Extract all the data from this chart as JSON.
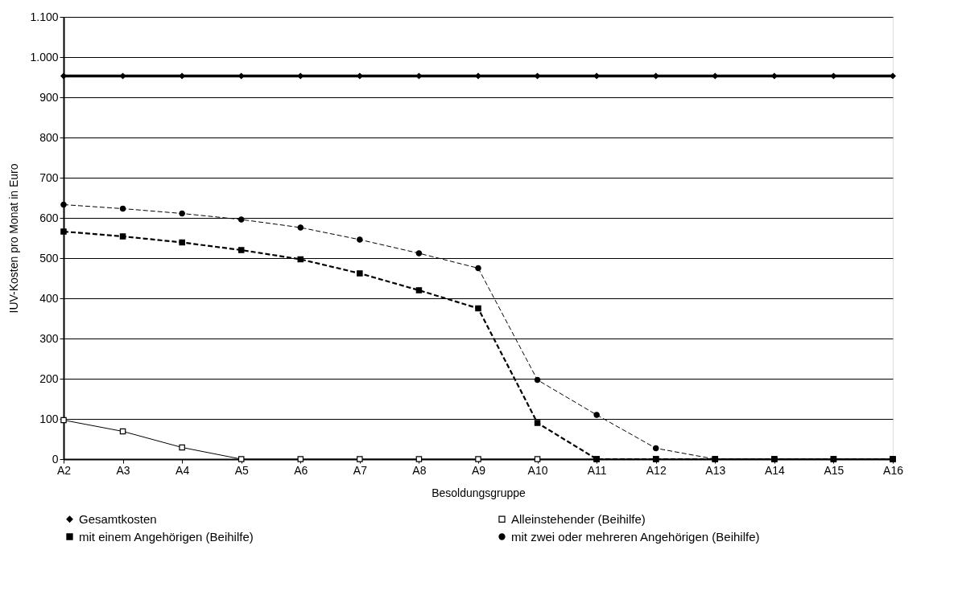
{
  "chart_data": {
    "type": "line",
    "xlabel": "Besoldungsgruppe",
    "ylabel": "IUV-Kosten pro Monat in Euro",
    "categories": [
      "A2",
      "A3",
      "A4",
      "A5",
      "A6",
      "A7",
      "A8",
      "A9",
      "A10",
      "A11",
      "A12",
      "A13",
      "A14",
      "A15",
      "A16"
    ],
    "ylim": [
      0,
      1100
    ],
    "yticks": [
      0,
      100,
      200,
      300,
      400,
      500,
      600,
      700,
      800,
      900,
      {
        "value": 1000,
        "label": "1.000"
      },
      {
        "value": 1100,
        "label": "1.100"
      }
    ],
    "grid": "y",
    "legend": "bottom",
    "series": [
      {
        "name": "Gesamtkosten",
        "color": "#000000",
        "marker": "diamond",
        "line_style": "solid",
        "values": [
          953,
          953,
          953,
          953,
          953,
          953,
          953,
          953,
          953,
          953,
          953,
          953,
          953,
          953,
          953
        ]
      },
      {
        "name": "Alleinstehender (Beihilfe)",
        "color": "#000000",
        "marker": "square",
        "line_style": "solid",
        "values": [
          97,
          69,
          29,
          0,
          0,
          0,
          0,
          0,
          0,
          0,
          0,
          0,
          0,
          0,
          0
        ]
      },
      {
        "name": "mit einem Angehörigen (Beihilfe)",
        "color": "#000000",
        "marker": "square",
        "line_style": "dashed",
        "values": [
          566,
          554,
          539,
          520,
          497,
          462,
          420,
          375,
          90,
          0,
          0,
          0,
          0,
          0,
          0
        ]
      },
      {
        "name": "mit zwei oder mehreren Angehörigen (Beihilfe)",
        "color": "#000000",
        "marker": "circle",
        "line_style": "dashed",
        "values": [
          633,
          623,
          611,
          596,
          576,
          546,
          512,
          475,
          197,
          110,
          27,
          0,
          0,
          0,
          0
        ]
      }
    ]
  }
}
